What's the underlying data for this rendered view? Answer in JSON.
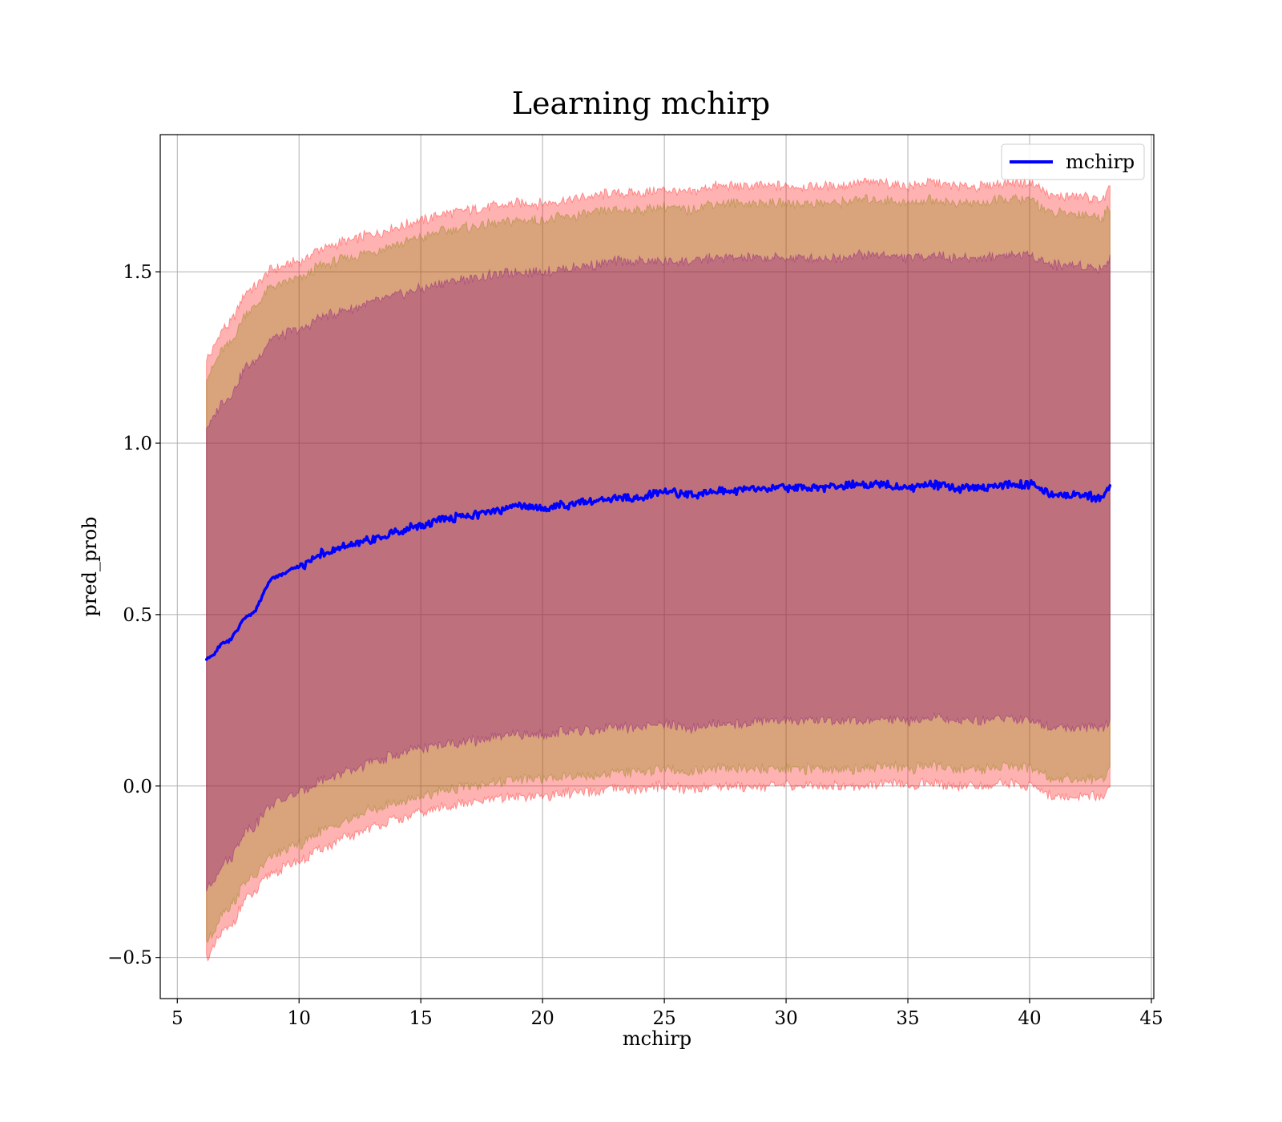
{
  "chart_data": {
    "type": "line",
    "title": "Learning mchirp",
    "xlabel": "mchirp",
    "ylabel": "pred_prob",
    "xlim": [
      4.3,
      45.1
    ],
    "ylim": [
      -0.62,
      1.9
    ],
    "grid": true,
    "legend_position": "top-right",
    "x_ticks": [
      5,
      10,
      15,
      20,
      25,
      30,
      35,
      40,
      45
    ],
    "x_tick_labels": [
      "5",
      "10",
      "15",
      "20",
      "25",
      "30",
      "35",
      "40",
      "45"
    ],
    "y_ticks": [
      -0.5,
      0.0,
      0.5,
      1.0,
      1.5
    ],
    "y_tick_labels": [
      "−0.5",
      "0.0",
      "0.5",
      "1.0",
      "1.5"
    ],
    "x": [
      6.2,
      7,
      8,
      9,
      10,
      11,
      12,
      13,
      14,
      15,
      16,
      17,
      18,
      19,
      20,
      21,
      22,
      23,
      24,
      25,
      26,
      27,
      28,
      29,
      30,
      31,
      32,
      33,
      34,
      35,
      36,
      37,
      38,
      39,
      40,
      41,
      42,
      43,
      43.3
    ],
    "series": [
      {
        "name": "mchirp",
        "color": "#0000ff",
        "values": [
          0.37,
          0.42,
          0.5,
          0.61,
          0.64,
          0.68,
          0.7,
          0.72,
          0.74,
          0.76,
          0.78,
          0.79,
          0.8,
          0.82,
          0.81,
          0.82,
          0.83,
          0.84,
          0.84,
          0.86,
          0.85,
          0.86,
          0.86,
          0.87,
          0.87,
          0.87,
          0.87,
          0.88,
          0.88,
          0.87,
          0.88,
          0.87,
          0.87,
          0.88,
          0.88,
          0.85,
          0.85,
          0.84,
          0.87
        ]
      }
    ],
    "bands": [
      {
        "color": "#ff0000",
        "opacity": 0.3,
        "lower": [
          -0.5,
          -0.42,
          -0.32,
          -0.25,
          -0.22,
          -0.18,
          -0.15,
          -0.12,
          -0.1,
          -0.08,
          -0.06,
          -0.05,
          -0.04,
          -0.03,
          -0.03,
          -0.02,
          -0.02,
          -0.01,
          -0.01,
          0.0,
          -0.01,
          0.0,
          0.0,
          0.0,
          0.0,
          0.0,
          0.0,
          0.0,
          0.01,
          0.0,
          0.01,
          0.0,
          0.0,
          0.01,
          0.0,
          -0.03,
          -0.03,
          -0.03,
          0.0
        ],
        "upper": [
          1.25,
          1.34,
          1.45,
          1.51,
          1.53,
          1.57,
          1.59,
          1.61,
          1.63,
          1.65,
          1.67,
          1.68,
          1.69,
          1.7,
          1.7,
          1.71,
          1.72,
          1.73,
          1.73,
          1.74,
          1.73,
          1.75,
          1.75,
          1.75,
          1.75,
          1.75,
          1.75,
          1.76,
          1.76,
          1.75,
          1.76,
          1.75,
          1.75,
          1.76,
          1.76,
          1.72,
          1.72,
          1.71,
          1.74
        ]
      },
      {
        "color": "#808000",
        "opacity": 0.3,
        "lower": [
          -0.45,
          -0.36,
          -0.27,
          -0.2,
          -0.17,
          -0.13,
          -0.1,
          -0.07,
          -0.05,
          -0.03,
          -0.01,
          0.0,
          0.01,
          0.02,
          0.02,
          0.03,
          0.03,
          0.04,
          0.04,
          0.05,
          0.04,
          0.05,
          0.05,
          0.05,
          0.05,
          0.05,
          0.05,
          0.05,
          0.06,
          0.05,
          0.06,
          0.05,
          0.05,
          0.06,
          0.05,
          0.02,
          0.02,
          0.02,
          0.05
        ],
        "upper": [
          1.2,
          1.28,
          1.39,
          1.46,
          1.48,
          1.52,
          1.54,
          1.56,
          1.58,
          1.6,
          1.62,
          1.63,
          1.64,
          1.65,
          1.65,
          1.66,
          1.67,
          1.68,
          1.68,
          1.69,
          1.68,
          1.7,
          1.7,
          1.7,
          1.7,
          1.7,
          1.7,
          1.71,
          1.71,
          1.7,
          1.71,
          1.7,
          1.7,
          1.71,
          1.71,
          1.67,
          1.67,
          1.66,
          1.69
        ]
      },
      {
        "color": "#800080",
        "opacity": 0.3,
        "lower": [
          -0.3,
          -0.22,
          -0.12,
          -0.05,
          -0.02,
          0.02,
          0.04,
          0.07,
          0.09,
          0.11,
          0.12,
          0.13,
          0.14,
          0.15,
          0.15,
          0.16,
          0.16,
          0.17,
          0.17,
          0.18,
          0.17,
          0.18,
          0.18,
          0.19,
          0.19,
          0.19,
          0.19,
          0.19,
          0.2,
          0.19,
          0.2,
          0.19,
          0.19,
          0.2,
          0.19,
          0.17,
          0.17,
          0.17,
          0.19
        ],
        "upper": [
          1.05,
          1.13,
          1.23,
          1.31,
          1.33,
          1.37,
          1.39,
          1.41,
          1.43,
          1.45,
          1.47,
          1.48,
          1.49,
          1.5,
          1.5,
          1.51,
          1.52,
          1.53,
          1.53,
          1.53,
          1.53,
          1.54,
          1.54,
          1.54,
          1.54,
          1.54,
          1.54,
          1.55,
          1.55,
          1.54,
          1.55,
          1.54,
          1.54,
          1.55,
          1.55,
          1.52,
          1.52,
          1.51,
          1.54
        ]
      }
    ]
  }
}
